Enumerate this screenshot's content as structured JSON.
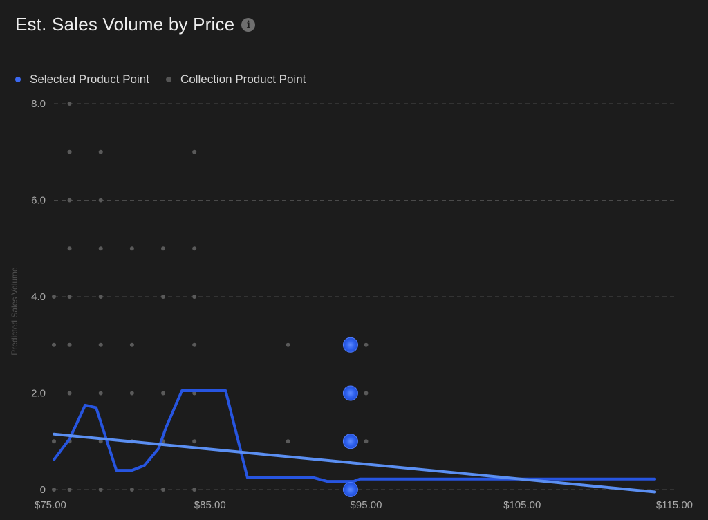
{
  "title": "Est. Sales Volume by Price",
  "colors": {
    "selected": "#2f5fe6",
    "selected_glow": "#4f7dff",
    "collection": "#5a5a5a",
    "line": "#2755e0",
    "trend": "#5b8ff2",
    "grid": "#4a4a4a"
  },
  "legend": [
    {
      "label": "Selected Product Point",
      "color": "#3b68f0"
    },
    {
      "label": "Collection Product Point",
      "color": "#555555"
    }
  ],
  "chart_data": {
    "type": "scatter",
    "title": "Est. Sales Volume by Price",
    "xlabel": "",
    "ylabel": "Predicted Sales Volume",
    "xlim": [
      75,
      115
    ],
    "ylim": [
      0,
      8
    ],
    "x_ticks": [
      "$75.00",
      "$85.00",
      "$95.00",
      "$105.00",
      "$115.00"
    ],
    "y_ticks": [
      "0",
      "2.0",
      "4.0",
      "6.0",
      "8.0"
    ],
    "grid": true,
    "legend_position": "top-left",
    "series": [
      {
        "name": "Selected Product Point",
        "kind": "scatter",
        "points": [
          [
            94,
            0
          ],
          [
            94,
            1
          ],
          [
            94,
            2
          ],
          [
            94,
            3
          ]
        ]
      },
      {
        "name": "Collection Product Point",
        "kind": "scatter",
        "points": [
          [
            75,
            0
          ],
          [
            75,
            1
          ],
          [
            75,
            3
          ],
          [
            75,
            4
          ],
          [
            76,
            0
          ],
          [
            76,
            1
          ],
          [
            76,
            2
          ],
          [
            76,
            3
          ],
          [
            76,
            4
          ],
          [
            76,
            5
          ],
          [
            76,
            6
          ],
          [
            76,
            7
          ],
          [
            76,
            8
          ],
          [
            78,
            0
          ],
          [
            78,
            1
          ],
          [
            78,
            2
          ],
          [
            78,
            3
          ],
          [
            78,
            4
          ],
          [
            78,
            5
          ],
          [
            78,
            6
          ],
          [
            78,
            7
          ],
          [
            80,
            0
          ],
          [
            80,
            1
          ],
          [
            80,
            2
          ],
          [
            80,
            3
          ],
          [
            80,
            5
          ],
          [
            82,
            0
          ],
          [
            82,
            1
          ],
          [
            82,
            2
          ],
          [
            82,
            4
          ],
          [
            82,
            5
          ],
          [
            84,
            0
          ],
          [
            84,
            1
          ],
          [
            84,
            2
          ],
          [
            84,
            3
          ],
          [
            84,
            4
          ],
          [
            84,
            5
          ],
          [
            84,
            7
          ],
          [
            90,
            1
          ],
          [
            90,
            3
          ],
          [
            95,
            1
          ],
          [
            95,
            2
          ],
          [
            95,
            3
          ]
        ]
      },
      {
        "kind": "line",
        "points": [
          [
            75,
            0.62
          ],
          [
            76,
            1.05
          ],
          [
            77,
            1.75
          ],
          [
            77.7,
            1.7
          ],
          [
            79,
            0.4
          ],
          [
            80,
            0.4
          ],
          [
            80.8,
            0.5
          ],
          [
            81.7,
            0.85
          ],
          [
            82.2,
            1.3
          ],
          [
            83.2,
            2.05
          ],
          [
            86,
            2.05
          ],
          [
            87.4,
            0.25
          ],
          [
            91.6,
            0.25
          ],
          [
            92.5,
            0.17
          ],
          [
            94.2,
            0.17
          ],
          [
            94.6,
            0.22
          ],
          [
            113.5,
            0.22
          ]
        ]
      },
      {
        "kind": "trend",
        "points": [
          [
            75,
            1.15
          ],
          [
            113.5,
            -0.05
          ]
        ]
      }
    ]
  }
}
